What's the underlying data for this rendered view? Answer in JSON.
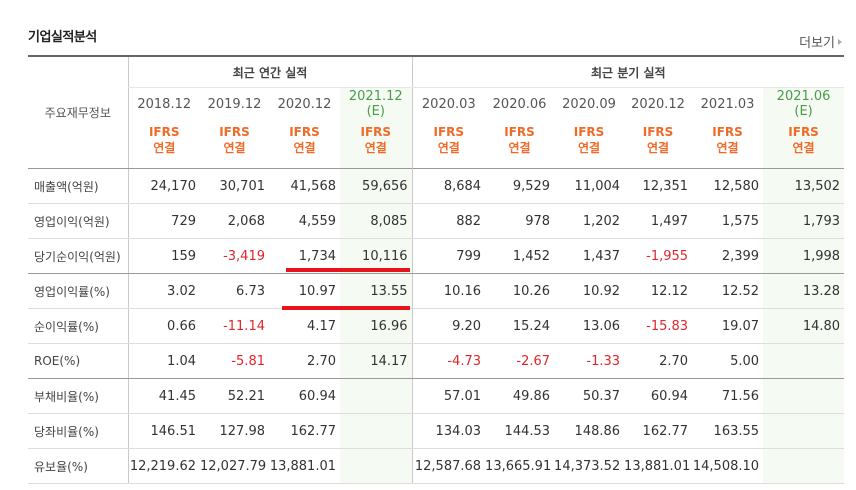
{
  "section_title": "기업실적분석",
  "more_label": "더보기",
  "header": {
    "row_label": "주요재무정보",
    "annual_group": "최근 연간 실적",
    "quarter_group": "최근 분기 실적",
    "periods": [
      {
        "label": "2018.12",
        "est": ""
      },
      {
        "label": "2019.12",
        "est": ""
      },
      {
        "label": "2020.12",
        "est": ""
      },
      {
        "label": "2021.12",
        "est": "(E)"
      },
      {
        "label": "2020.03",
        "est": ""
      },
      {
        "label": "2020.06",
        "est": ""
      },
      {
        "label": "2020.09",
        "est": ""
      },
      {
        "label": "2020.12",
        "est": ""
      },
      {
        "label": "2021.03",
        "est": ""
      },
      {
        "label": "2021.06",
        "est": "(E)"
      }
    ],
    "std_line1": "IFRS",
    "std_line2": "연결"
  },
  "rows": [
    {
      "label": "매출액(억원)",
      "values": [
        "24,170",
        "30,701",
        "41,568",
        "59,656",
        "8,684",
        "9,529",
        "11,004",
        "12,351",
        "12,580",
        "13,502"
      ]
    },
    {
      "label": "영업이익(억원)",
      "values": [
        "729",
        "2,068",
        "4,559",
        "8,085",
        "882",
        "978",
        "1,202",
        "1,497",
        "1,575",
        "1,793"
      ]
    },
    {
      "label": "당기순이익(억원)",
      "values": [
        "159",
        "-3,419",
        "1,734",
        "10,116",
        "799",
        "1,452",
        "1,437",
        "-1,955",
        "2,399",
        "1,998"
      ]
    },
    {
      "label": "영업이익률(%)",
      "values": [
        "3.02",
        "6.73",
        "10.97",
        "13.55",
        "10.16",
        "10.26",
        "10.92",
        "12.12",
        "12.52",
        "13.28"
      ]
    },
    {
      "label": "순이익률(%)",
      "values": [
        "0.66",
        "-11.14",
        "4.17",
        "16.96",
        "9.20",
        "15.24",
        "13.06",
        "-15.83",
        "19.07",
        "14.80"
      ]
    },
    {
      "label": "ROE(%)",
      "values": [
        "1.04",
        "-5.81",
        "2.70",
        "14.17",
        "-4.73",
        "-2.67",
        "-1.33",
        "2.70",
        "5.00",
        ""
      ]
    },
    {
      "label": "부채비율(%)",
      "values": [
        "41.45",
        "52.21",
        "60.94",
        "",
        "57.01",
        "49.86",
        "50.37",
        "60.94",
        "71.56",
        ""
      ]
    },
    {
      "label": "당좌비율(%)",
      "values": [
        "146.51",
        "127.98",
        "162.77",
        "",
        "134.03",
        "144.53",
        "148.86",
        "162.77",
        "163.55",
        ""
      ]
    },
    {
      "label": "유보율(%)",
      "values": [
        "12,219.62",
        "12,027.79",
        "13,881.01",
        "",
        "12,587.68",
        "13,665.91",
        "14,373.52",
        "13,881.01",
        "14,508.10",
        ""
      ]
    }
  ],
  "colors": {
    "negative": "#e0262b",
    "ifrs": "#f06a28",
    "estimate_bg": "#f5fbf3",
    "estimate_text": "#4a9a4a",
    "highlight": "#e8141b"
  }
}
